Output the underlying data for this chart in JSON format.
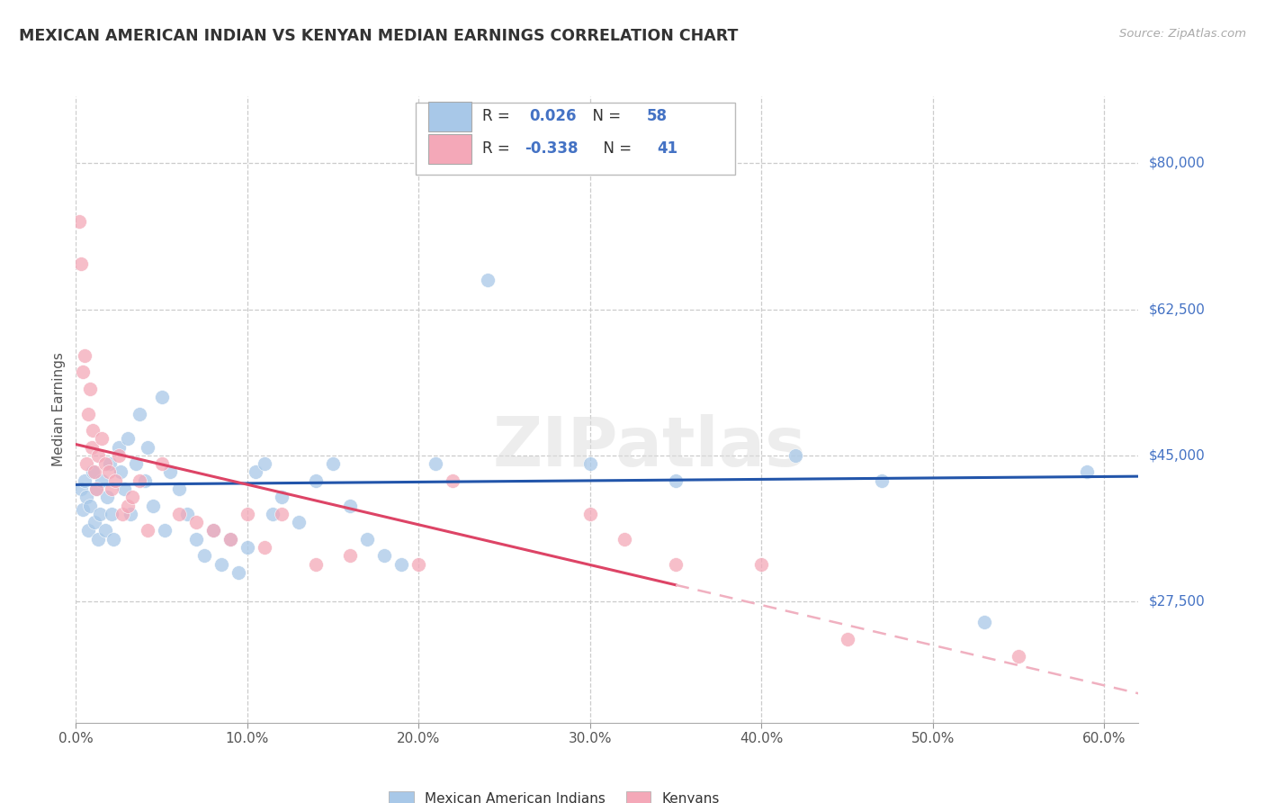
{
  "title": "MEXICAN AMERICAN INDIAN VS KENYAN MEDIAN EARNINGS CORRELATION CHART",
  "source": "Source: ZipAtlas.com",
  "xlabel_vals": [
    0.0,
    10.0,
    20.0,
    30.0,
    40.0,
    50.0,
    60.0
  ],
  "ylim": [
    13000,
    88000
  ],
  "xlim": [
    0.0,
    62.0
  ],
  "watermark": "ZIPatlas",
  "legend_blue_R": "0.026",
  "legend_blue_N": "58",
  "legend_pink_R": "-0.338",
  "legend_pink_N": "41",
  "legend_label_blue": "Mexican American Indians",
  "legend_label_pink": "Kenyans",
  "blue_color": "#a8c8e8",
  "pink_color": "#f4a8b8",
  "trend_blue_color": "#2255aa",
  "trend_pink_color": "#dd4466",
  "trend_pink_dashed_color": "#f0b0c0",
  "ylabel": "Median Earnings",
  "ytick_positions": [
    27500,
    45000,
    62500,
    80000
  ],
  "ytick_labels": [
    "$27,500",
    "$45,000",
    "$62,500",
    "$80,000"
  ],
  "blue_x": [
    0.3,
    0.4,
    0.5,
    0.6,
    0.7,
    0.8,
    1.0,
    1.1,
    1.2,
    1.3,
    1.4,
    1.5,
    1.7,
    1.8,
    2.0,
    2.1,
    2.2,
    2.5,
    2.6,
    2.8,
    3.0,
    3.2,
    3.5,
    3.7,
    4.0,
    4.2,
    4.5,
    5.0,
    5.2,
    5.5,
    6.0,
    6.5,
    7.0,
    7.5,
    8.0,
    8.5,
    9.0,
    9.5,
    10.0,
    10.5,
    11.0,
    11.5,
    12.0,
    13.0,
    14.0,
    15.0,
    16.0,
    17.0,
    18.0,
    19.0,
    21.0,
    24.0,
    30.0,
    35.0,
    42.0,
    47.0,
    53.0,
    59.0
  ],
  "blue_y": [
    41000,
    38500,
    42000,
    40000,
    36000,
    39000,
    43000,
    37000,
    41000,
    35000,
    38000,
    42000,
    36000,
    40000,
    44000,
    38000,
    35000,
    46000,
    43000,
    41000,
    47000,
    38000,
    44000,
    50000,
    42000,
    46000,
    39000,
    52000,
    36000,
    43000,
    41000,
    38000,
    35000,
    33000,
    36000,
    32000,
    35000,
    31000,
    34000,
    43000,
    44000,
    38000,
    40000,
    37000,
    42000,
    44000,
    39000,
    35000,
    33000,
    32000,
    44000,
    66000,
    44000,
    42000,
    45000,
    42000,
    25000,
    43000
  ],
  "pink_x": [
    0.2,
    0.3,
    0.4,
    0.5,
    0.6,
    0.7,
    0.8,
    0.9,
    1.0,
    1.1,
    1.2,
    1.3,
    1.5,
    1.7,
    1.9,
    2.1,
    2.3,
    2.5,
    2.7,
    3.0,
    3.3,
    3.7,
    4.2,
    5.0,
    6.0,
    7.0,
    8.0,
    9.0,
    10.0,
    11.0,
    12.0,
    14.0,
    16.0,
    20.0,
    22.0,
    30.0,
    32.0,
    35.0,
    40.0,
    45.0,
    55.0
  ],
  "pink_y": [
    73000,
    68000,
    55000,
    57000,
    44000,
    50000,
    53000,
    46000,
    48000,
    43000,
    41000,
    45000,
    47000,
    44000,
    43000,
    41000,
    42000,
    45000,
    38000,
    39000,
    40000,
    42000,
    36000,
    44000,
    38000,
    37000,
    36000,
    35000,
    38000,
    34000,
    38000,
    32000,
    33000,
    32000,
    42000,
    38000,
    35000,
    32000,
    32000,
    23000,
    21000
  ],
  "pink_solid_end_x": 35.0,
  "pink_dashed_end_x": 62.0
}
